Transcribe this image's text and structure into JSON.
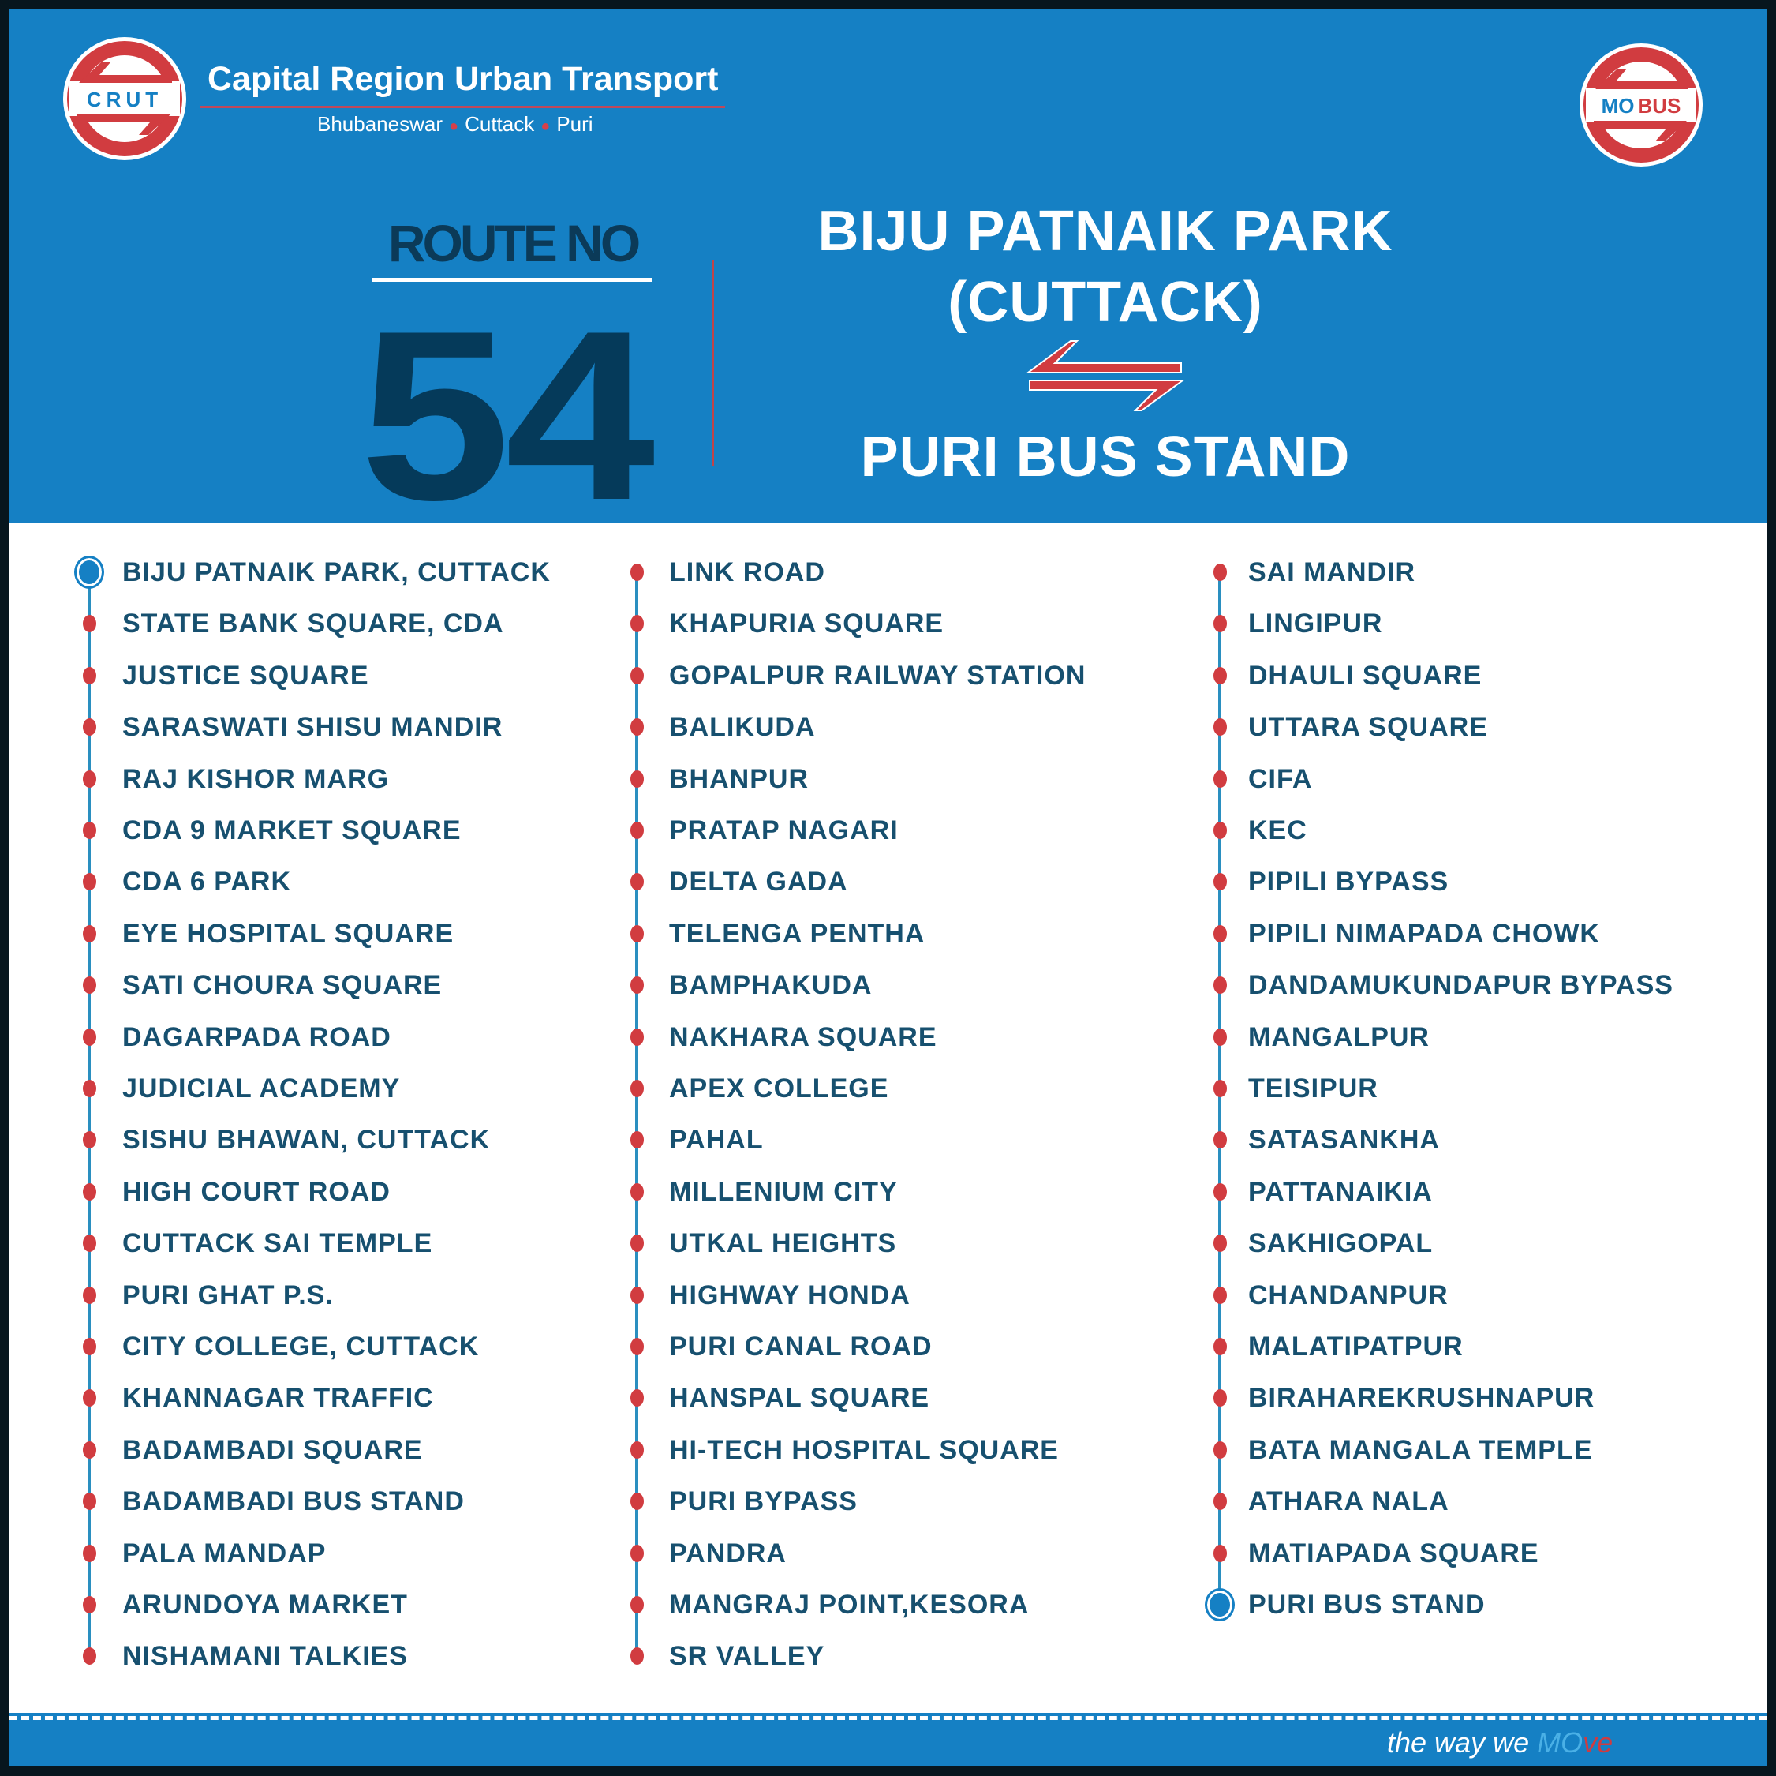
{
  "header": {
    "org_logo_text": "CRUT",
    "org_name": "Capital Region Urban Transport",
    "cities": [
      "Bhubaneswar",
      "Cuttack",
      "Puri"
    ],
    "brand_logo_text_1": "MO",
    "brand_logo_text_2": "BUS",
    "route_label": "ROUTE NO",
    "route_number": "54",
    "origin_line1": "BIJU PATNAIK PARK",
    "origin_line2": "(CUTTACK)",
    "destination": "PURI BUS STAND",
    "direction_icon": "bidirectional-arrows-icon"
  },
  "colors": {
    "primary_blue": "#1580c4",
    "accent_red": "#d13c40",
    "text_navy": "#17506f",
    "route_number": "#053a5a"
  },
  "stops": [
    [
      "BIJU PATNAIK PARK, CUTTACK",
      "STATE BANK SQUARE, CDA",
      "JUSTICE SQUARE",
      "SARASWATI SHISU MANDIR",
      "RAJ KISHOR MARG",
      "CDA 9 MARKET SQUARE",
      "CDA 6 PARK",
      "EYE HOSPITAL SQUARE",
      "SATI CHOURA SQUARE",
      "DAGARPADA ROAD",
      "JUDICIAL ACADEMY",
      "SISHU BHAWAN, CUTTACK",
      "HIGH COURT ROAD",
      "CUTTACK SAI TEMPLE",
      "PURI GHAT P.S.",
      "CITY COLLEGE, CUTTACK",
      "KHANNAGAR TRAFFIC",
      "BADAMBADI SQUARE",
      "BADAMBADI BUS STAND",
      "PALA MANDAP",
      "ARUNDOYA MARKET",
      "NISHAMANI TALKIES"
    ],
    [
      "LINK ROAD",
      "KHAPURIA SQUARE",
      "GOPALPUR RAILWAY STATION",
      "BALIKUDA",
      "BHANPUR",
      "PRATAP NAGARI",
      "DELTA GADA",
      "TELENGA PENTHA",
      "BAMPHAKUDA",
      "NAKHARA SQUARE",
      "APEX COLLEGE",
      "PAHAL",
      "MILLENIUM CITY",
      "UTKAL HEIGHTS",
      "HIGHWAY HONDA",
      "PURI CANAL ROAD",
      "HANSPAL SQUARE",
      "HI-TECH HOSPITAL SQUARE",
      "PURI BYPASS",
      "PANDRA",
      "MANGRAJ POINT,KESORA",
      "SR VALLEY"
    ],
    [
      "SAI MANDIR",
      "LINGIPUR",
      "DHAULI SQUARE",
      "UTTARA SQUARE",
      "CIFA",
      "KEC",
      "PIPILI BYPASS",
      "PIPILI NIMAPADA CHOWK",
      "DANDAMUKUNDAPUR BYPASS",
      "MANGALPUR",
      "TEISIPUR",
      "SATASANKHA",
      "PATTANAIKIA",
      "SAKHIGOPAL",
      "CHANDANPUR",
      "MALATIPATPUR",
      "BIRAHAREKRUSHNAPUR",
      "BATA MANGALA TEMPLE",
      "ATHARA NALA",
      "MATIAPADA SQUARE",
      "PURI BUS STAND"
    ]
  ],
  "footer": {
    "tagline_1": "the way we ",
    "tagline_mo": "MO",
    "tagline_ve": "ve"
  }
}
